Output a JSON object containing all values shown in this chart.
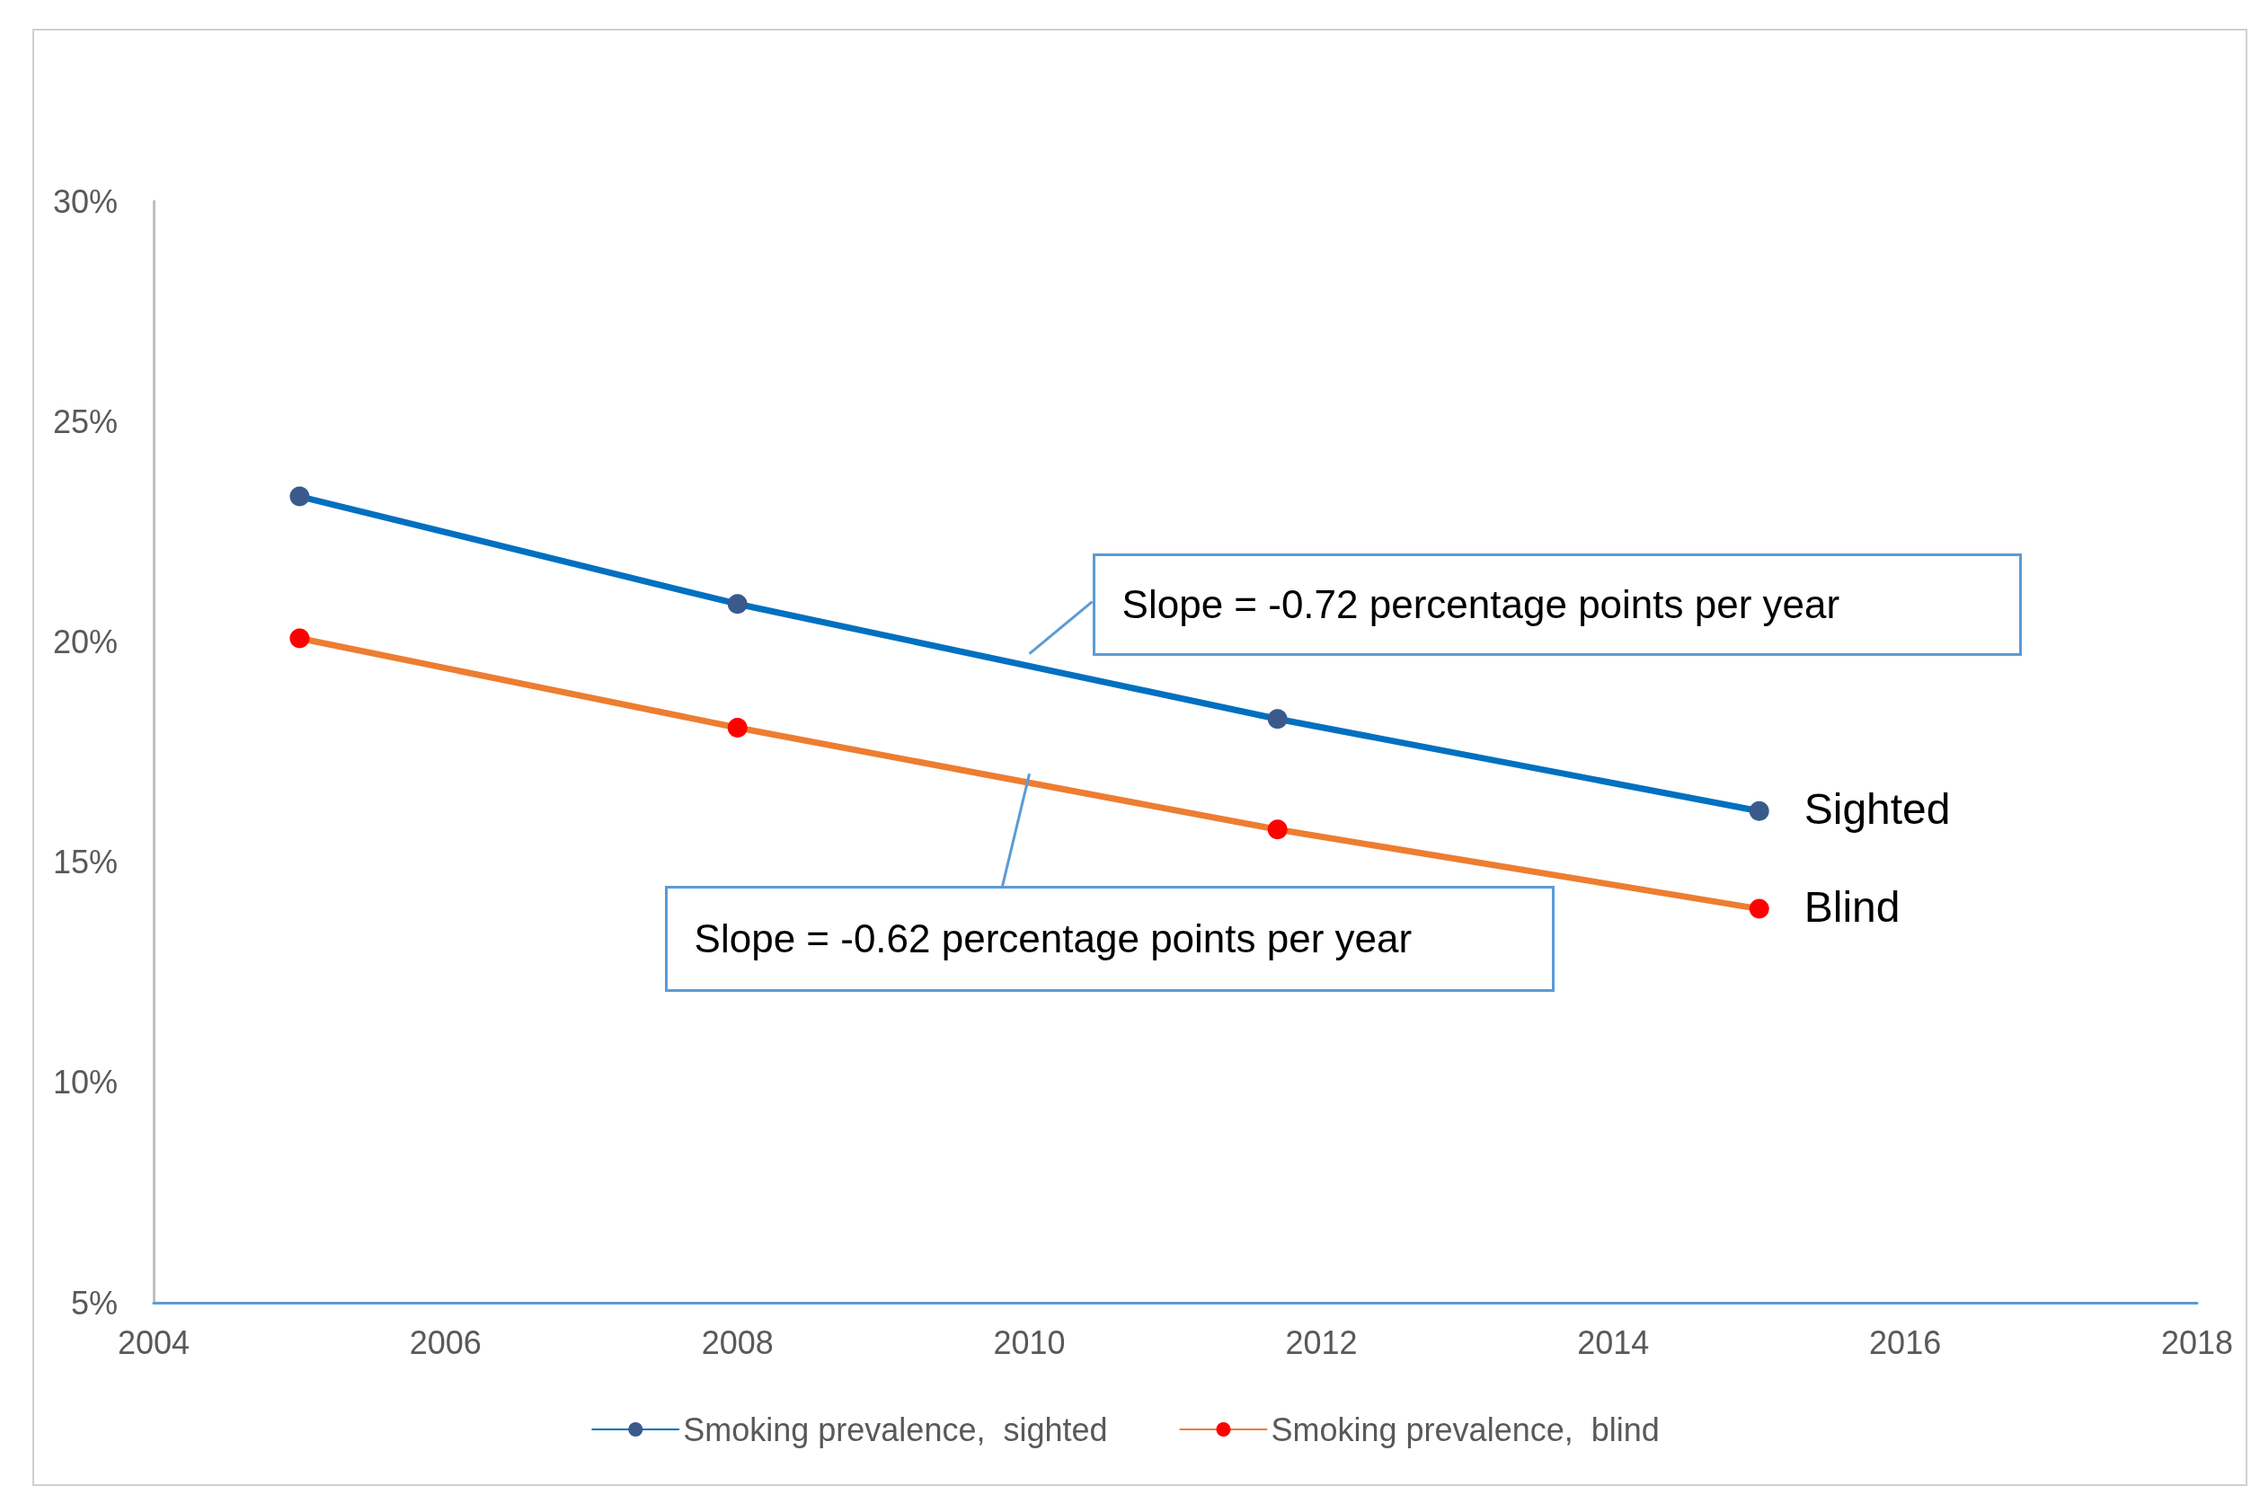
{
  "chart_data": {
    "type": "line",
    "x": [
      2005,
      2008,
      2011.7,
      2015
    ],
    "series": [
      {
        "name": "Smoking prevalence,  sighted",
        "color": "#0070c0",
        "values": [
          23.3,
          20.86,
          18.25,
          16.16
        ]
      },
      {
        "name": "Smoking prevalence,  blind",
        "color": "#ed7d31",
        "values": [
          20.08,
          18.05,
          15.74,
          13.94
        ]
      }
    ],
    "marker": "circle",
    "xlim": [
      2004,
      2018
    ],
    "xticks": [
      2004,
      2006,
      2008,
      2010,
      2012,
      2014,
      2016,
      2018
    ],
    "ylim": [
      5,
      30
    ],
    "yticks": [
      {
        "value": 5,
        "label": "5%"
      },
      {
        "value": 10,
        "label": "10%"
      },
      {
        "value": 15,
        "label": "15%"
      },
      {
        "value": 20,
        "label": "20%"
      },
      {
        "value": 25,
        "label": "25%"
      },
      {
        "value": 30,
        "label": "30%"
      }
    ],
    "grid": false,
    "legend": "bottom",
    "annotations": [
      "Slope = -0.72 percentage points per year",
      "Slope = -0.62 percentage points per year",
      {
        "text": "Sighted",
        "x": 2015,
        "y": 16.16
      },
      {
        "text": "Blind",
        "x": 2015,
        "y": 13.94
      }
    ]
  }
}
